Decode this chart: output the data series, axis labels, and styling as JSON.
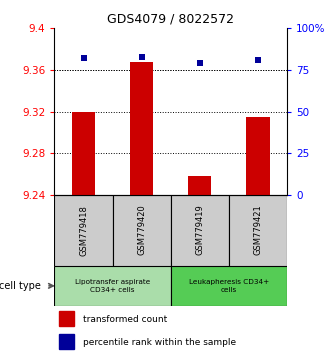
{
  "title": "GDS4079 / 8022572",
  "samples": [
    "GSM779418",
    "GSM779420",
    "GSM779419",
    "GSM779421"
  ],
  "bar_values": [
    9.32,
    9.368,
    9.258,
    9.315
  ],
  "percentile_values": [
    82,
    83,
    79,
    81
  ],
  "ymin": 9.24,
  "ymax": 9.4,
  "yticks": [
    9.24,
    9.28,
    9.32,
    9.36,
    9.4
  ],
  "ytick_labels": [
    "9.24",
    "9.28",
    "9.32",
    "9.36",
    "9.4"
  ],
  "y2ticks": [
    0,
    25,
    50,
    75,
    100
  ],
  "y2tick_labels": [
    "0",
    "25",
    "50",
    "75",
    "100%"
  ],
  "bar_color": "#cc0000",
  "marker_color": "#000099",
  "bar_base": 9.24,
  "bar_width": 0.4,
  "sample_box_color": "#cccccc",
  "group1_color": "#aaddaa",
  "group2_color": "#55cc55",
  "cell_type_label": "cell type",
  "group_labels": [
    "Lipotransfer aspirate\nCD34+ cells",
    "Leukapheresis CD34+\ncells"
  ],
  "legend_items": [
    {
      "color": "#cc0000",
      "label": "transformed count"
    },
    {
      "color": "#000099",
      "label": "percentile rank within the sample"
    }
  ]
}
